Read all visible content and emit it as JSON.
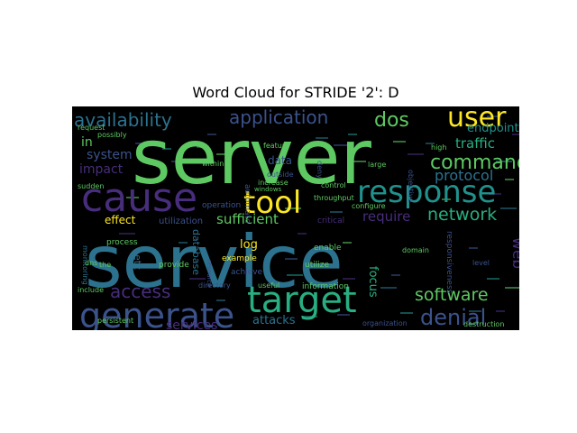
{
  "title": "Word Cloud for STRIDE '2': D",
  "background": "#000000",
  "words": [
    {
      "text": "server",
      "color": "#5ec962"
    },
    {
      "text": "service",
      "color": "#2c728e"
    },
    {
      "text": "cause",
      "color": "#472d7b"
    },
    {
      "text": "target",
      "color": "#28ae80"
    },
    {
      "text": "generate",
      "color": "#3b528b"
    },
    {
      "text": "response",
      "color": "#21918c"
    },
    {
      "text": "tool",
      "color": "#fde725"
    },
    {
      "text": "user",
      "color": "#fde725"
    },
    {
      "text": "availability",
      "color": "#2c728e"
    },
    {
      "text": "application",
      "color": "#3b528b"
    },
    {
      "text": "dos",
      "color": "#5ec962"
    },
    {
      "text": "command",
      "color": "#5ec962"
    },
    {
      "text": "denial",
      "color": "#3b528b"
    },
    {
      "text": "software",
      "color": "#5ec962"
    },
    {
      "text": "access",
      "color": "#472d7b"
    },
    {
      "text": "network",
      "color": "#28ae80"
    },
    {
      "text": "protocol",
      "color": "#2c728e"
    },
    {
      "text": "traffic",
      "color": "#28ae80"
    },
    {
      "text": "endpoint",
      "color": "#21918c"
    },
    {
      "text": "impact",
      "color": "#472d7b"
    },
    {
      "text": "system",
      "color": "#3b528b"
    },
    {
      "text": "in",
      "color": "#5ec962"
    },
    {
      "text": "sufficient",
      "color": "#5ec962"
    },
    {
      "text": "require",
      "color": "#472d7b"
    },
    {
      "text": "web",
      "color": "#472d7b"
    },
    {
      "text": "services",
      "color": "#472d7b"
    },
    {
      "text": "attacks",
      "color": "#2c728e"
    },
    {
      "text": "log",
      "color": "#fde725"
    },
    {
      "text": "focus",
      "color": "#28ae80"
    },
    {
      "text": "effect",
      "color": "#fde725"
    },
    {
      "text": "data",
      "color": "#3b528b"
    },
    {
      "text": "database",
      "color": "#2c728e"
    },
    {
      "text": "etc",
      "color": "#2c728e"
    },
    {
      "text": "utilization",
      "color": "#3b528b"
    },
    {
      "text": "process",
      "color": "#5ec962"
    },
    {
      "text": "provide",
      "color": "#5ec962"
    },
    {
      "text": "example",
      "color": "#fde725"
    },
    {
      "text": "achieve",
      "color": "#3b528b"
    },
    {
      "text": "directory",
      "color": "#3b528b"
    },
    {
      "text": "information",
      "color": "#5ec962"
    },
    {
      "text": "utilize",
      "color": "#5ec962"
    },
    {
      "text": "enable",
      "color": "#5ec962"
    },
    {
      "text": "critical",
      "color": "#472d7b"
    },
    {
      "text": "organization",
      "color": "#3b528b"
    },
    {
      "text": "destruction",
      "color": "#5ec962"
    },
    {
      "text": "persistent",
      "color": "#5ec962"
    },
    {
      "text": "include",
      "color": "#5ec962"
    },
    {
      "text": "useful",
      "color": "#5ec962"
    },
    {
      "text": "monitoring",
      "color": "#2c728e"
    },
    {
      "text": "dns",
      "color": "#5ec962"
    },
    {
      "text": "the",
      "color": "#5ec962"
    },
    {
      "text": "possibly",
      "color": "#5ec962"
    },
    {
      "text": "request",
      "color": "#5ec962"
    },
    {
      "text": "sudden",
      "color": "#5ec962"
    },
    {
      "text": "within",
      "color": "#5ec962"
    },
    {
      "text": "feature",
      "color": "#5ec962"
    },
    {
      "text": "outside",
      "color": "#3b528b"
    },
    {
      "text": "increase",
      "color": "#5ec962"
    },
    {
      "text": "windows",
      "color": "#5ec962"
    },
    {
      "text": "control",
      "color": "#5ec962"
    },
    {
      "text": "throughput",
      "color": "#5ec962"
    },
    {
      "text": "configure",
      "color": "#5ec962"
    },
    {
      "text": "large",
      "color": "#5ec962"
    },
    {
      "text": "objective",
      "color": "#3b528b"
    },
    {
      "text": "high",
      "color": "#5ec962"
    },
    {
      "text": "level",
      "color": "#3b528b"
    },
    {
      "text": "responsiveness",
      "color": "#3b528b"
    },
    {
      "text": "domain",
      "color": "#5ec962"
    },
    {
      "text": "automate",
      "color": "#3b528b"
    },
    {
      "text": "operation",
      "color": "#3b528b"
    },
    {
      "text": "resource",
      "color": "#3b528b"
    },
    {
      "text": "deny",
      "color": "#3b528b"
    }
  ]
}
